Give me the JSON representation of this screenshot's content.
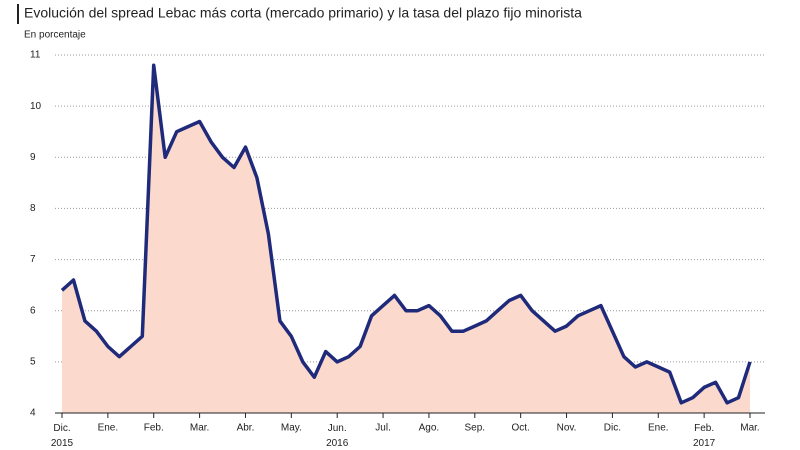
{
  "chart_data": {
    "type": "line",
    "title": "Evolución del spread Lebac más corta (mercado primario) y la tasa del plazo fijo minorista",
    "subtitle": "En porcentaje",
    "categories": [
      "Dic.\n2015",
      null,
      null,
      null,
      "Ene.",
      null,
      null,
      null,
      "Feb.",
      null,
      null,
      null,
      "Mar.",
      null,
      null,
      null,
      "Abr.",
      null,
      null,
      null,
      "May.",
      null,
      null,
      null,
      "Jun.\n2016",
      null,
      null,
      null,
      "Jul.",
      null,
      null,
      null,
      "Ago.",
      null,
      null,
      null,
      "Sep.",
      null,
      null,
      null,
      "Oct.",
      null,
      null,
      null,
      "Nov.",
      null,
      null,
      null,
      "Dic.",
      null,
      null,
      null,
      "Ene.",
      null,
      null,
      null,
      "Feb.\n2017",
      null,
      null,
      null,
      "Mar."
    ],
    "series": [
      {
        "name": "Spread",
        "color": "#1f2a7a",
        "fill": "#fbd9cc",
        "values": [
          6.4,
          6.6,
          5.8,
          5.6,
          5.3,
          5.1,
          5.3,
          5.5,
          10.8,
          9.0,
          9.5,
          9.6,
          9.7,
          9.3,
          9.0,
          8.8,
          9.2,
          8.6,
          7.5,
          5.8,
          5.5,
          5.0,
          4.7,
          5.2,
          5.0,
          5.1,
          5.3,
          5.9,
          6.1,
          6.3,
          6.0,
          6.0,
          6.1,
          5.9,
          5.6,
          5.6,
          5.7,
          5.8,
          6.0,
          6.2,
          6.3,
          6.0,
          5.8,
          5.6,
          5.7,
          5.9,
          6.0,
          6.1,
          5.6,
          5.1,
          4.9,
          5.0,
          4.9,
          4.8,
          4.2,
          4.3,
          4.5,
          4.6,
          4.2,
          4.3,
          5.0
        ]
      }
    ],
    "ylim": [
      4,
      11
    ],
    "yticks": [
      4,
      5,
      6,
      7,
      8,
      9,
      10,
      11
    ],
    "grid": true
  }
}
